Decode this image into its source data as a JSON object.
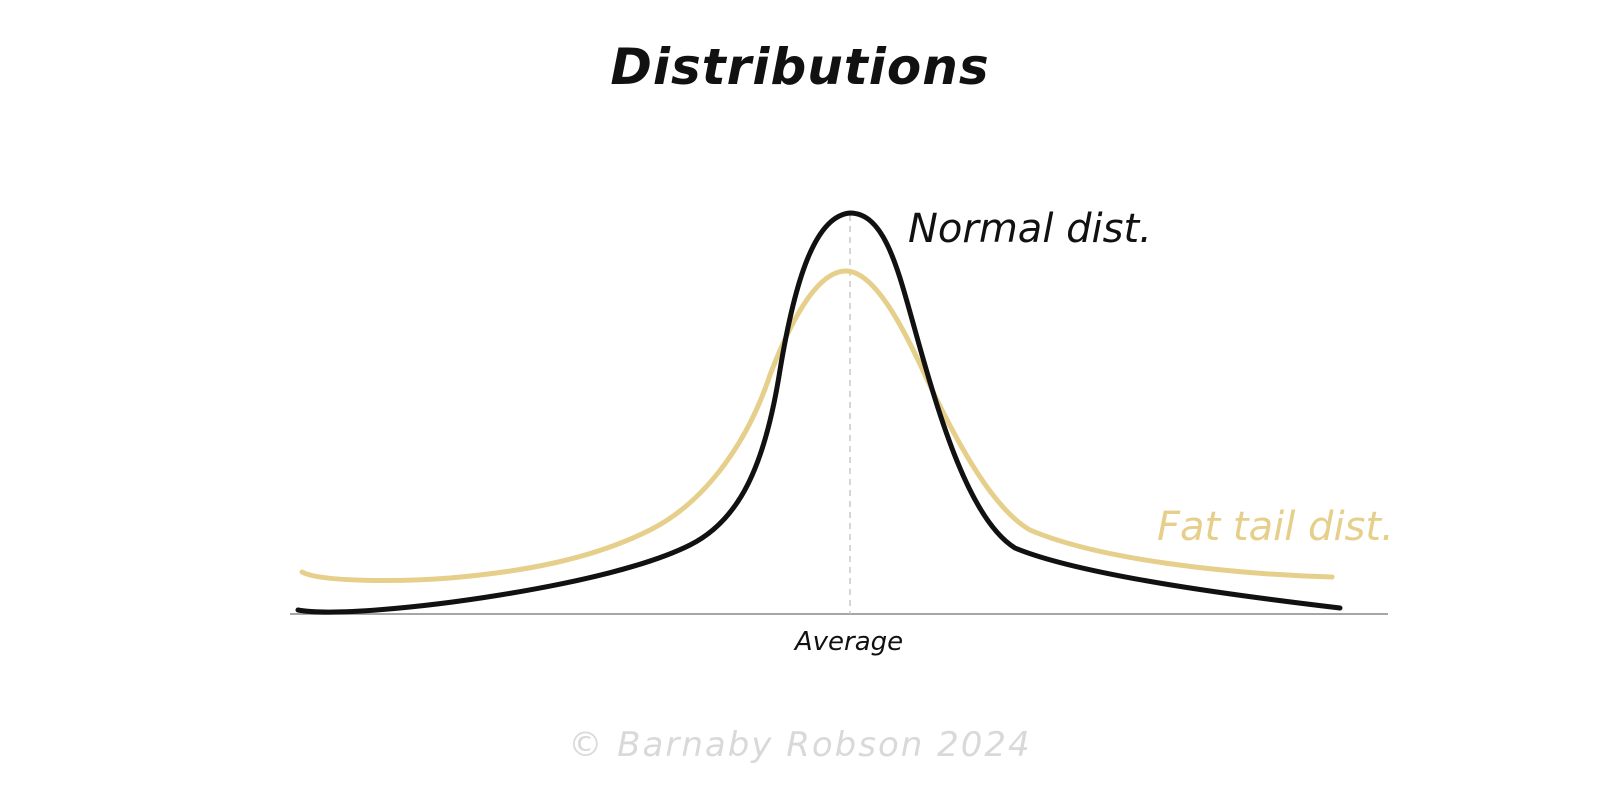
{
  "title": "Distributions",
  "labels": {
    "normal": "Normal dist.",
    "fat_tail": "Fat tail dist.",
    "average": "Average"
  },
  "copyright": "© Barnaby Robson 2024",
  "colors": {
    "normal_curve": "#111111",
    "fat_tail_curve": "#e6cf8b",
    "axis": "#888888",
    "mean_line": "#c8c8c8",
    "copyright": "#d9d9d9"
  }
}
